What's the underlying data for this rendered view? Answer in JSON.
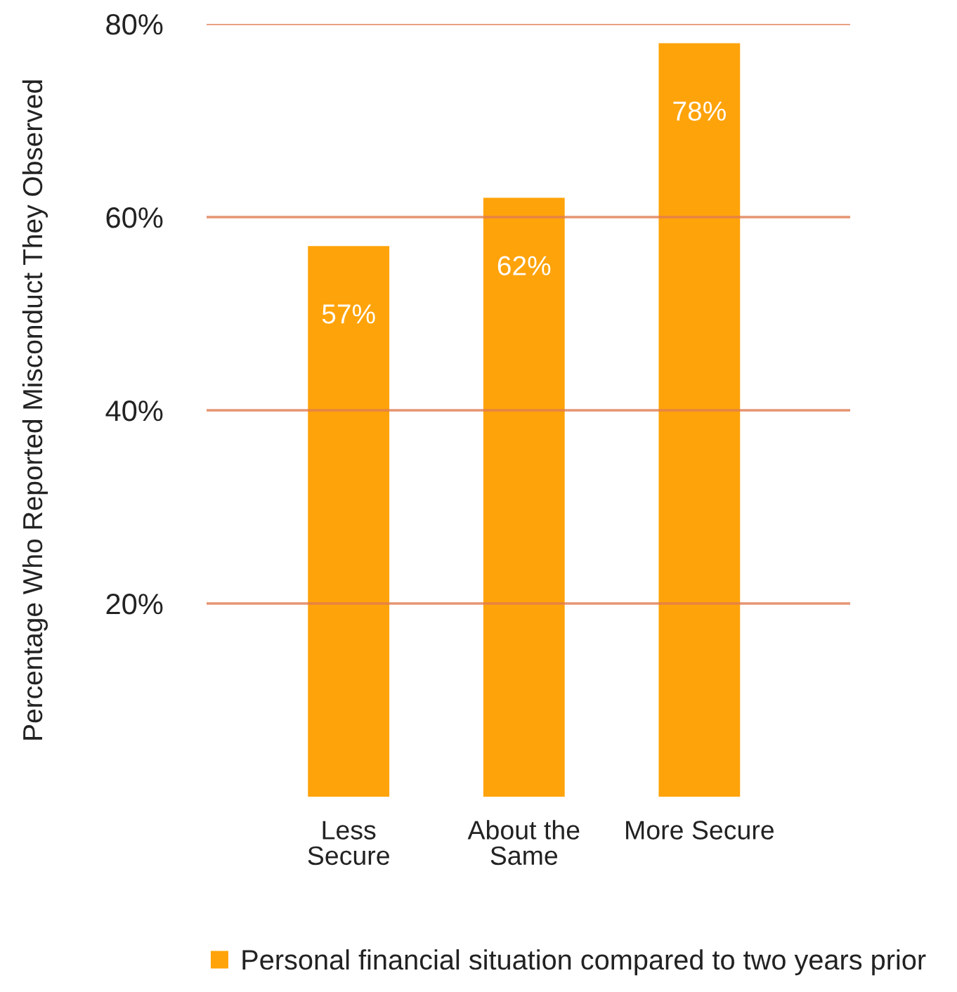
{
  "chart_data": {
    "type": "bar",
    "ylabel": "Percentage Who Reported Misconduct They Observed",
    "categories": [
      "Less\nSecure",
      "About the\nSame",
      "More Secure"
    ],
    "series": [
      {
        "name": "Personal financial situation compared to two years prior",
        "color": "#ffa30a",
        "values": [
          57,
          62,
          78
        ]
      }
    ],
    "value_labels": [
      "57%",
      "62%",
      "78%"
    ],
    "ylim": [
      0,
      80
    ],
    "yticks": [
      {
        "value": 20,
        "label": "20%"
      },
      {
        "value": 40,
        "label": "40%"
      },
      {
        "value": 60,
        "label": "60%"
      },
      {
        "value": 80,
        "label": "80%"
      }
    ],
    "grid": "y",
    "legend": "bottom"
  }
}
